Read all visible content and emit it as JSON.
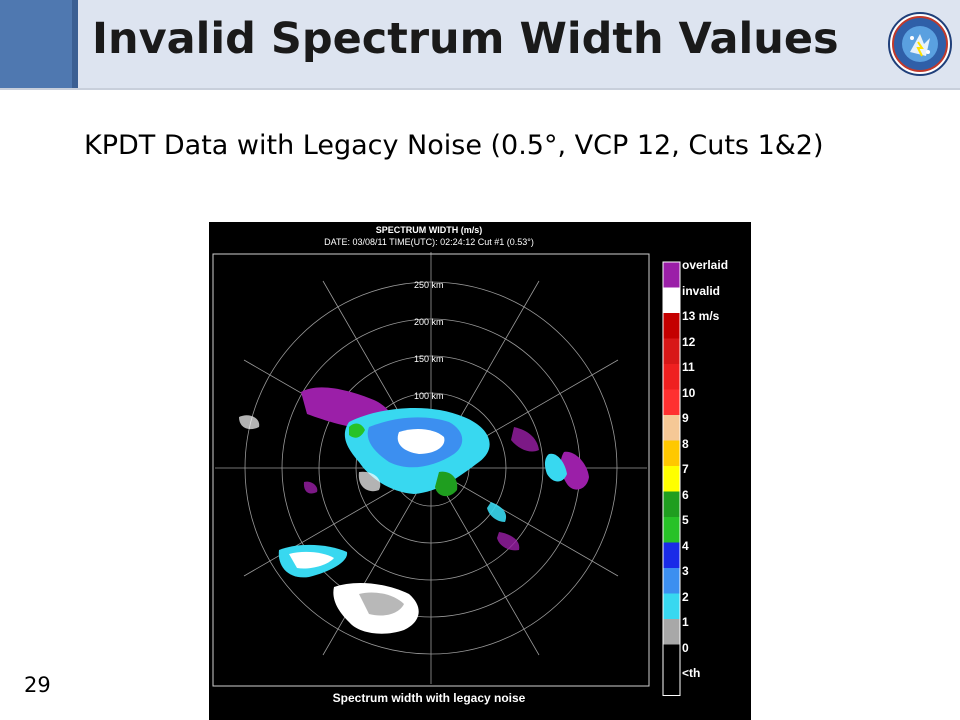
{
  "slide": {
    "title": "Invalid Spectrum Width Values",
    "subtitle": "KPDT Data with Legacy Noise (0.5°, VCP 12, Cuts 1&2)",
    "page_number": "29"
  },
  "logo": {
    "icon": "national-severe-storms-laboratory-seal-icon"
  },
  "radar": {
    "title": "SPECTRUM WIDTH (m/s)",
    "date_line": "DATE: 03/08/11 TIME(UTC): 02:24:12 Cut #1 (0.53°)",
    "caption": "Spectrum width with legacy noise",
    "range_rings": [
      "250 km",
      "200 km",
      "150 km",
      "100 km"
    ],
    "legend": [
      {
        "label": "overlaid",
        "color": "#9b1fa8"
      },
      {
        "label": "invalid",
        "color": "#ffffff"
      },
      {
        "label": "13 m/s",
        "color": "#c40000"
      },
      {
        "label": "12",
        "color": "#d81818"
      },
      {
        "label": "11",
        "color": "#ef2020"
      },
      {
        "label": "10",
        "color": "#ff3030"
      },
      {
        "label": "9",
        "color": "#f5c896"
      },
      {
        "label": "8",
        "color": "#ffc800"
      },
      {
        "label": "7",
        "color": "#ffff00"
      },
      {
        "label": "6",
        "color": "#1f9e1f"
      },
      {
        "label": "5",
        "color": "#27c227"
      },
      {
        "label": "4",
        "color": "#1a2be8"
      },
      {
        "label": "3",
        "color": "#3c8ff0"
      },
      {
        "label": "2",
        "color": "#38d8f0"
      },
      {
        "label": "1",
        "color": "#a8a8a8"
      },
      {
        "label": "0",
        "color": "#000000"
      },
      {
        "label": "<th",
        "color": "#000000"
      }
    ]
  }
}
